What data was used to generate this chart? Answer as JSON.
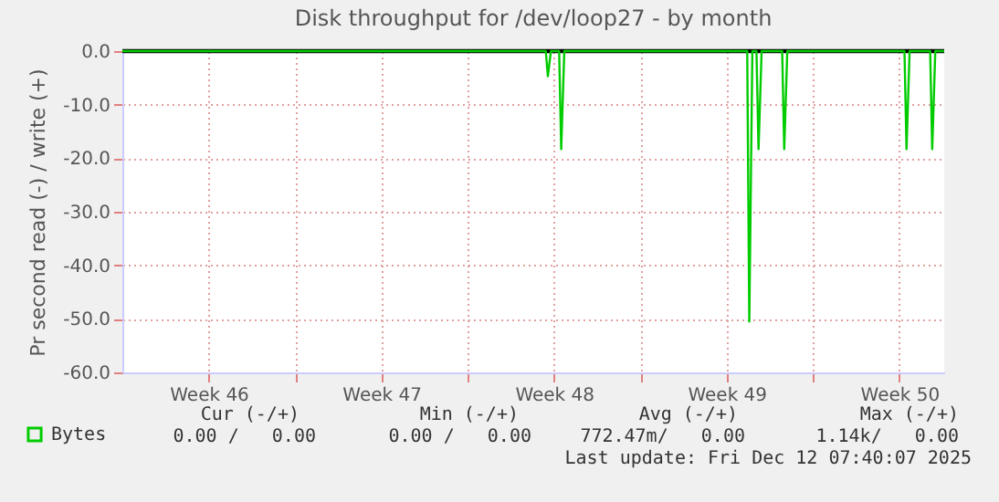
{
  "chart_data": {
    "type": "line",
    "title": "Disk throughput for /dev/loop27 - by month",
    "ylabel": "Pr second read (-) / write (+)",
    "x": [
      "2025-11-09T00:00",
      "2025-11-26T04:00",
      "2025-11-26T06:00",
      "2025-11-26T09:00",
      "2025-11-26T17:00",
      "2025-11-26T19:00",
      "2025-11-26T22:00",
      "2025-12-04T08:00",
      "2025-12-04T10:00",
      "2025-12-04T13:00",
      "2025-12-04T17:00",
      "2025-12-04T19:00",
      "2025-12-04T22:00",
      "2025-12-05T18:00",
      "2025-12-05T20:00",
      "2025-12-05T23:00",
      "2025-12-10T17:00",
      "2025-12-10T19:00",
      "2025-12-10T22:00",
      "2025-12-11T18:00",
      "2025-12-11T20:00",
      "2025-12-11T23:00",
      "2025-12-12T07:40"
    ],
    "series": [
      {
        "name": "Bytes",
        "color": "#00cc00",
        "values": [
          0,
          0,
          -4.7,
          0,
          0,
          -18.3,
          0,
          0,
          -50.5,
          0,
          0,
          -18.3,
          0,
          0,
          -18.3,
          0,
          0,
          -18.3,
          0,
          0,
          -18.3,
          0,
          0
        ]
      }
    ],
    "xlim": [
      "2025-11-09T00:00",
      "2025-12-12T07:40"
    ],
    "xticks": [
      {
        "value": "2025-11-12T12:00",
        "label": "Week 46"
      },
      {
        "value": "2025-11-16T00:00",
        "label": null
      },
      {
        "value": "2025-11-19T12:00",
        "label": "Week 47"
      },
      {
        "value": "2025-11-23T00:00",
        "label": null
      },
      {
        "value": "2025-11-26T12:00",
        "label": "Week 48"
      },
      {
        "value": "2025-11-30T00:00",
        "label": null
      },
      {
        "value": "2025-12-03T12:00",
        "label": "Week 49"
      },
      {
        "value": "2025-12-07T00:00",
        "label": null
      },
      {
        "value": "2025-12-10T12:00",
        "label": "Week 50"
      }
    ],
    "ylim": [
      -60,
      0
    ],
    "yticks": [
      {
        "value": -60,
        "label": "-60.0"
      },
      {
        "value": -50,
        "label": "-50.0"
      },
      {
        "value": -40,
        "label": "-40.0"
      },
      {
        "value": -30,
        "label": "-30.0"
      },
      {
        "value": -20,
        "label": "-20.0"
      },
      {
        "value": -10,
        "label": "-10.0"
      },
      {
        "value": 0,
        "label": "0.0"
      }
    ],
    "ref_lines": [
      {
        "axis": "y",
        "value": 0,
        "color": "#000000"
      }
    ],
    "grid": true,
    "legend": "bottom left",
    "annotations": [
      "Cur (-/+)",
      "Min (-/+)",
      "Avg (-/+)",
      "Max (-/+)",
      "0.00 /   0.00",
      "0.00 /   0.00",
      "772.47m/   0.00",
      "1.14k/   0.00",
      "Last update: Fri Dec 12 07:40:07 2025"
    ]
  }
}
